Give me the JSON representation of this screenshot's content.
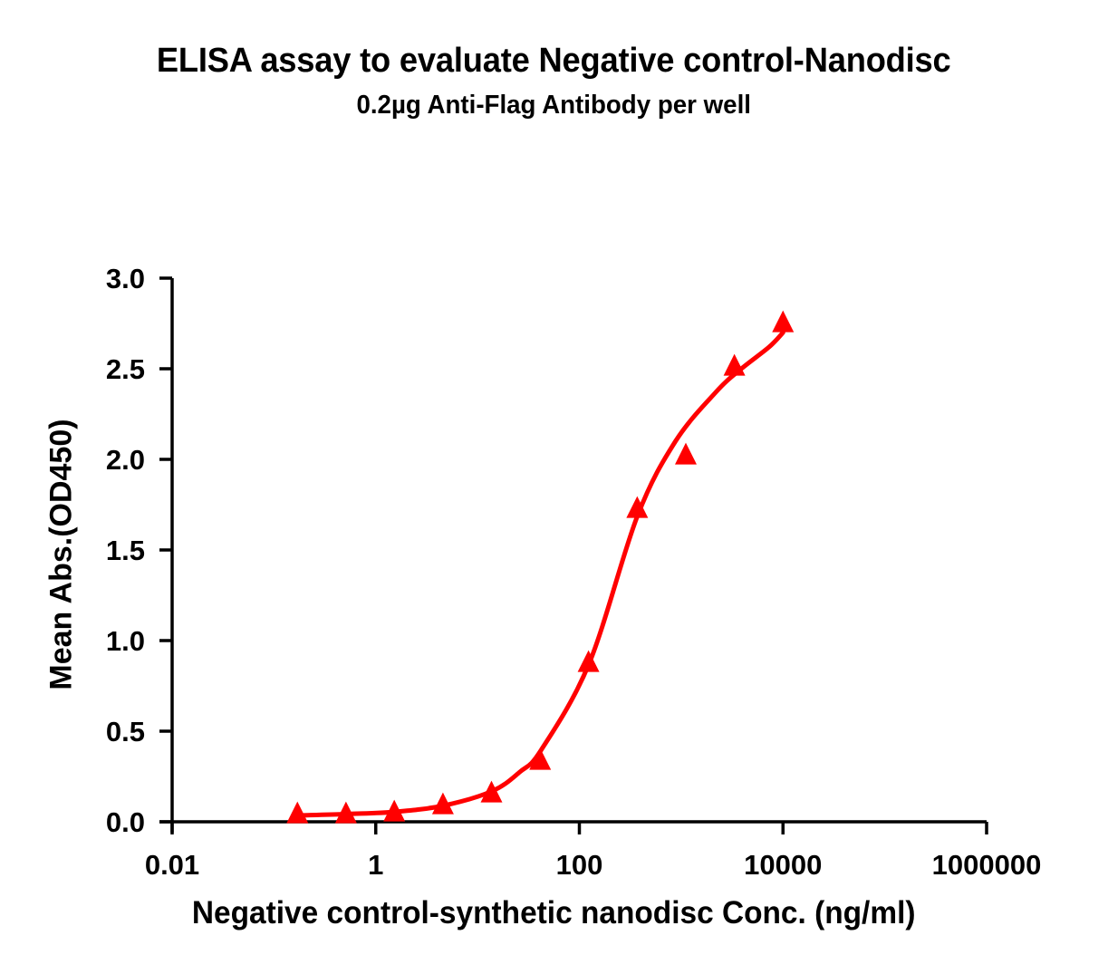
{
  "chart_data": {
    "type": "scatter",
    "title": "ELISA assay to evaluate Negative control-Nanodisc",
    "subtitle": "0.2µg Anti-Flag Antibody per well",
    "xlabel": "Negative control-synthetic nanodisc Conc. (ng/ml)",
    "ylabel": "Mean Abs.(OD450)",
    "xscale": "log",
    "xlim": [
      0.01,
      1000000
    ],
    "ylim": [
      0,
      3.0
    ],
    "x_ticks": [
      {
        "value": 0.01,
        "label": "0.01"
      },
      {
        "value": 1,
        "label": "1"
      },
      {
        "value": 100,
        "label": "100"
      },
      {
        "value": 10000,
        "label": "10000"
      },
      {
        "value": 1000000,
        "label": "1000000"
      }
    ],
    "y_ticks": [
      {
        "value": 0.0,
        "label": "0.0"
      },
      {
        "value": 0.5,
        "label": "0.5"
      },
      {
        "value": 1.0,
        "label": "1.0"
      },
      {
        "value": 1.5,
        "label": "1.5"
      },
      {
        "value": 2.0,
        "label": "2.0"
      },
      {
        "value": 2.5,
        "label": "2.5"
      },
      {
        "value": 3.0,
        "label": "3.0"
      }
    ],
    "grid": false,
    "legend": null,
    "series": [
      {
        "name": "Negative control-Nanodisc",
        "color": "#ff0000",
        "marker": "triangle",
        "x": [
          0.17,
          0.51,
          1.52,
          4.57,
          13.7,
          41.2,
          123,
          370,
          1111,
          3333,
          10000
        ],
        "y": [
          0.04,
          0.04,
          0.05,
          0.09,
          0.155,
          0.335,
          0.875,
          1.725,
          2.02,
          2.51,
          2.75
        ]
      }
    ],
    "fit_curve": {
      "name": "4PL fit",
      "color": "#ff0000",
      "x": [
        0.167,
        0.53,
        1.57,
        4.7,
        14.0,
        26.0,
        42.0,
        125,
        370,
        880,
        2185,
        3800,
        7300,
        10000
      ],
      "y": [
        0.035,
        0.043,
        0.055,
        0.09,
        0.17,
        0.275,
        0.395,
        0.875,
        1.685,
        2.1,
        2.37,
        2.495,
        2.62,
        2.7
      ]
    }
  }
}
